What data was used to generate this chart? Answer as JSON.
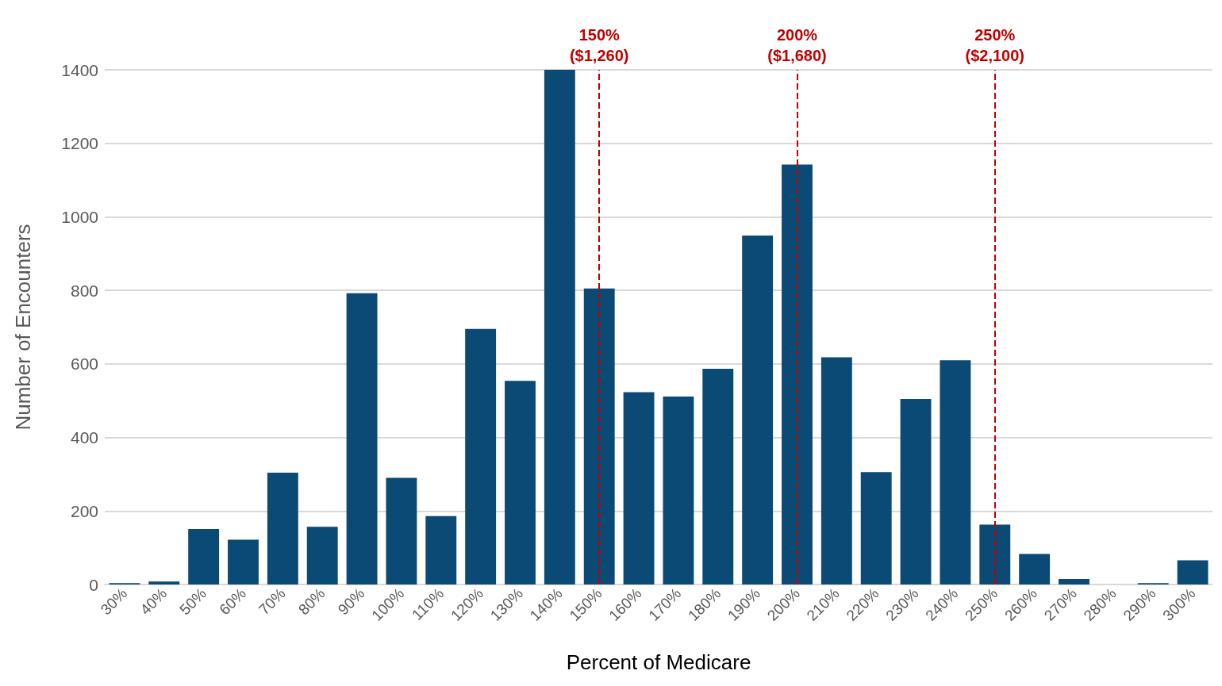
{
  "chart_data": {
    "type": "bar",
    "xlabel": "Percent of Medicare",
    "ylabel": "Number of Encounters",
    "categories": [
      "30%",
      "40%",
      "50%",
      "60%",
      "70%",
      "80%",
      "90%",
      "100%",
      "110%",
      "120%",
      "130%",
      "140%",
      "150%",
      "160%",
      "170%",
      "180%",
      "190%",
      "200%",
      "210%",
      "220%",
      "230%",
      "240%",
      "250%",
      "260%",
      "270%",
      "280%",
      "290%",
      "300%"
    ],
    "values": [
      4,
      8,
      151,
      122,
      304,
      157,
      792,
      290,
      186,
      695,
      554,
      1400,
      805,
      523,
      511,
      587,
      949,
      1142,
      618,
      306,
      505,
      610,
      163,
      83,
      15,
      0,
      4,
      66
    ],
    "color": "#0b4a75",
    "ylim": [
      0,
      1400
    ],
    "yticks": [
      0,
      200,
      400,
      600,
      800,
      1000,
      1200,
      1400
    ],
    "grid": "y",
    "ref_lines": [
      {
        "axis": "x",
        "value": "150%",
        "label": "150%\n($1,260)",
        "color": "#c00000",
        "line_style": "dashed"
      },
      {
        "axis": "x",
        "value": "200%",
        "label": "200%\n($1,680)",
        "color": "#c00000",
        "line_style": "dashed"
      },
      {
        "axis": "x",
        "value": "250%",
        "label": "250%\n($2,100)",
        "color": "#c00000",
        "line_style": "dashed"
      }
    ]
  }
}
